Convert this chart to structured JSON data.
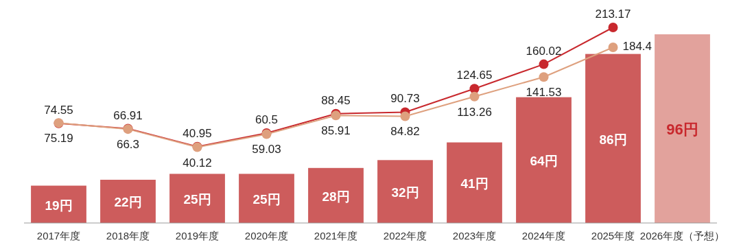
{
  "chart_data": {
    "type": "bar",
    "categories": [
      "2017年度",
      "2018年度",
      "2019年度",
      "2020年度",
      "2021年度",
      "2022年度",
      "2023年度",
      "2024年度",
      "2025年度",
      "2026年度（予想）"
    ],
    "series": [
      {
        "colors": [
          "#cd5c5c",
          "#cd5c5c",
          "#cd5c5c",
          "#cd5c5c",
          "#cd5c5c",
          "#cd5c5c",
          "#cd5c5c",
          "#cd5c5c",
          "#cd5c5c",
          "#e2a29c"
        ],
        "values": [
          19,
          22,
          25,
          25,
          28,
          32,
          41,
          64,
          86,
          96
        ],
        "value_labels": [
          "19円",
          "22円",
          "25円",
          "25円",
          "28円",
          "32円",
          "41円",
          "64円",
          "86円",
          "96円"
        ]
      },
      {
        "type": "line",
        "axis": "y2",
        "color": "#c8282d",
        "values": [
          74.55,
          66.91,
          40.95,
          60.5,
          88.45,
          90.73,
          124.65,
          160.02,
          213.17,
          null
        ]
      },
      {
        "type": "line",
        "axis": "y2",
        "color": "#dea07e",
        "values": [
          75.19,
          66.3,
          40.12,
          59.03,
          85.91,
          84.82,
          113.26,
          141.53,
          184.4,
          null
        ]
      }
    ],
    "data_labels": true,
    "marker": "circle"
  }
}
